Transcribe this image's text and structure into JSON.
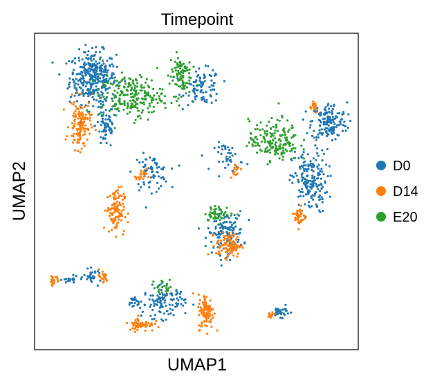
{
  "chart_data": {
    "type": "scatter",
    "title": "Timepoint",
    "xlabel": "UMAP1",
    "ylabel": "UMAP2",
    "xticks": [],
    "yticks": [],
    "grid": false,
    "legend_placement": "right",
    "series": [
      {
        "name": "D0",
        "color": "#1f77b4"
      },
      {
        "name": "D14",
        "color": "#ff7f0e"
      },
      {
        "name": "E20",
        "color": "#2ca02c"
      }
    ],
    "xlim": [
      0,
      1
    ],
    "ylim": [
      0,
      1
    ],
    "clusters": [
      {
        "series": "D0",
        "cx": 0.18,
        "cy": 0.86,
        "rx": 0.065,
        "ry": 0.075,
        "n": 340
      },
      {
        "series": "D0",
        "cx": 0.22,
        "cy": 0.71,
        "rx": 0.03,
        "ry": 0.07,
        "n": 70
      },
      {
        "series": "D0",
        "cx": 0.52,
        "cy": 0.83,
        "rx": 0.05,
        "ry": 0.05,
        "n": 90
      },
      {
        "series": "D0",
        "cx": 0.36,
        "cy": 0.56,
        "rx": 0.05,
        "ry": 0.05,
        "n": 70
      },
      {
        "series": "D0",
        "cx": 0.91,
        "cy": 0.72,
        "rx": 0.05,
        "ry": 0.055,
        "n": 160
      },
      {
        "series": "D0",
        "cx": 0.85,
        "cy": 0.53,
        "rx": 0.05,
        "ry": 0.09,
        "n": 180
      },
      {
        "series": "D0",
        "cx": 0.59,
        "cy": 0.37,
        "rx": 0.05,
        "ry": 0.06,
        "n": 140
      },
      {
        "series": "D0",
        "cx": 0.6,
        "cy": 0.61,
        "rx": 0.04,
        "ry": 0.04,
        "n": 40
      },
      {
        "series": "D0",
        "cx": 0.4,
        "cy": 0.15,
        "rx": 0.06,
        "ry": 0.045,
        "n": 110
      },
      {
        "series": "D0",
        "cx": 0.31,
        "cy": 0.15,
        "rx": 0.02,
        "ry": 0.02,
        "n": 20
      },
      {
        "series": "D0",
        "cx": 0.76,
        "cy": 0.12,
        "rx": 0.025,
        "ry": 0.015,
        "n": 30
      },
      {
        "series": "D0",
        "cx": 0.18,
        "cy": 0.23,
        "rx": 0.025,
        "ry": 0.02,
        "n": 30
      },
      {
        "series": "D0",
        "cx": 0.11,
        "cy": 0.22,
        "rx": 0.02,
        "ry": 0.01,
        "n": 20
      },
      {
        "series": "D14",
        "cx": 0.14,
        "cy": 0.71,
        "rx": 0.03,
        "ry": 0.07,
        "n": 130
      },
      {
        "series": "D14",
        "cx": 0.25,
        "cy": 0.44,
        "rx": 0.025,
        "ry": 0.065,
        "n": 110
      },
      {
        "series": "D14",
        "cx": 0.33,
        "cy": 0.55,
        "rx": 0.015,
        "ry": 0.02,
        "n": 20
      },
      {
        "series": "D14",
        "cx": 0.6,
        "cy": 0.33,
        "rx": 0.035,
        "ry": 0.035,
        "n": 100
      },
      {
        "series": "D14",
        "cx": 0.82,
        "cy": 0.42,
        "rx": 0.015,
        "ry": 0.03,
        "n": 40
      },
      {
        "series": "D14",
        "cx": 0.86,
        "cy": 0.77,
        "rx": 0.015,
        "ry": 0.02,
        "n": 20
      },
      {
        "series": "D14",
        "cx": 0.53,
        "cy": 0.12,
        "rx": 0.022,
        "ry": 0.05,
        "n": 100
      },
      {
        "series": "D14",
        "cx": 0.33,
        "cy": 0.08,
        "rx": 0.035,
        "ry": 0.02,
        "n": 60
      },
      {
        "series": "D14",
        "cx": 0.06,
        "cy": 0.22,
        "rx": 0.015,
        "ry": 0.012,
        "n": 20
      },
      {
        "series": "D14",
        "cx": 0.21,
        "cy": 0.23,
        "rx": 0.015,
        "ry": 0.02,
        "n": 20
      },
      {
        "series": "D14",
        "cx": 0.73,
        "cy": 0.11,
        "rx": 0.015,
        "ry": 0.01,
        "n": 15
      },
      {
        "series": "D14",
        "cx": 0.62,
        "cy": 0.57,
        "rx": 0.015,
        "ry": 0.02,
        "n": 15
      },
      {
        "series": "E20",
        "cx": 0.3,
        "cy": 0.8,
        "rx": 0.09,
        "ry": 0.06,
        "n": 220
      },
      {
        "series": "E20",
        "cx": 0.45,
        "cy": 0.87,
        "rx": 0.03,
        "ry": 0.06,
        "n": 90
      },
      {
        "series": "E20",
        "cx": 0.74,
        "cy": 0.66,
        "rx": 0.07,
        "ry": 0.06,
        "n": 180
      },
      {
        "series": "E20",
        "cx": 0.57,
        "cy": 0.43,
        "rx": 0.04,
        "ry": 0.02,
        "n": 50
      },
      {
        "series": "E20",
        "cx": 0.4,
        "cy": 0.2,
        "rx": 0.03,
        "ry": 0.02,
        "n": 20
      }
    ]
  }
}
